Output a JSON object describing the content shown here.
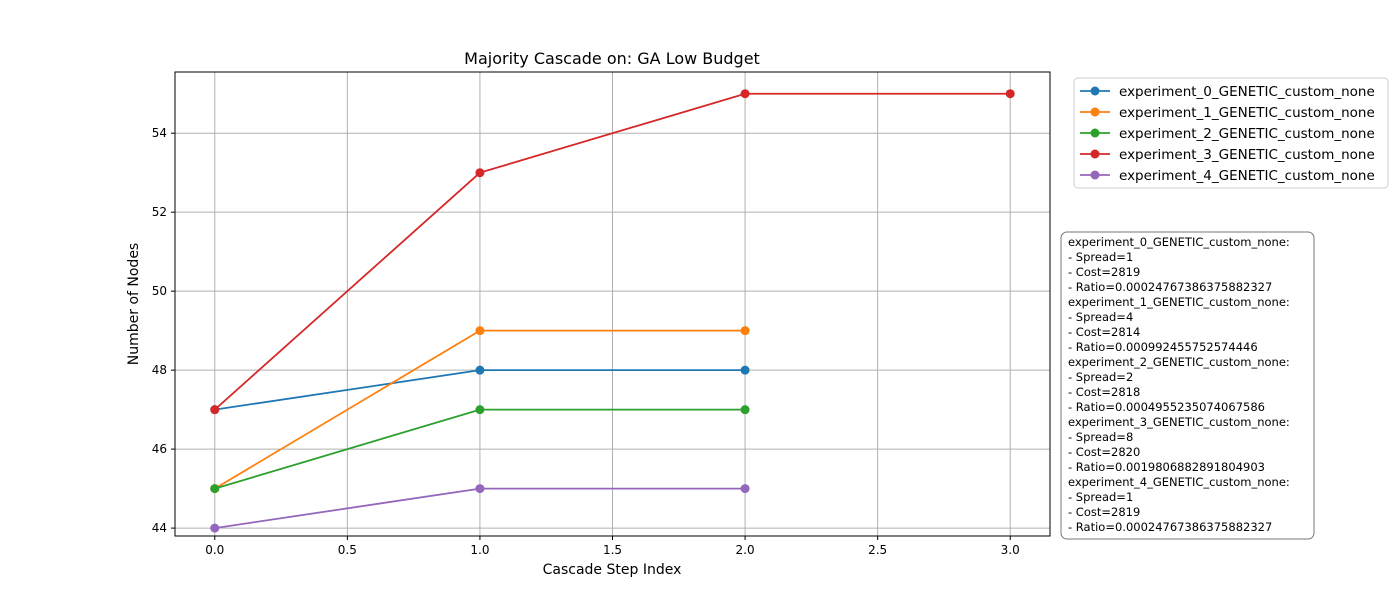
{
  "chart_data": {
    "type": "line",
    "title": "Majority Cascade on: GA Low Budget",
    "xlabel": "Cascade Step Index",
    "ylabel": "Number of Nodes",
    "xlim": [
      -0.15,
      3.15
    ],
    "ylim": [
      43.8,
      55.55
    ],
    "xticks": [
      "0.0",
      "0.5",
      "1.0",
      "1.5",
      "2.0",
      "2.5",
      "3.0"
    ],
    "xtick_values": [
      0,
      0.5,
      1,
      1.5,
      2,
      2.5,
      3
    ],
    "yticks": [
      "44",
      "46",
      "48",
      "50",
      "52",
      "54"
    ],
    "ytick_values": [
      44,
      46,
      48,
      50,
      52,
      54
    ],
    "grid": true,
    "legend_position": "upper-right-outside",
    "series": [
      {
        "name": "experiment_0_GENETIC_custom_none",
        "color": "#1f77b4",
        "x": [
          0,
          1,
          2
        ],
        "y": [
          47,
          48,
          48
        ]
      },
      {
        "name": "experiment_1_GENETIC_custom_none",
        "color": "#ff7f0e",
        "x": [
          0,
          1,
          2
        ],
        "y": [
          45,
          49,
          49
        ]
      },
      {
        "name": "experiment_2_GENETIC_custom_none",
        "color": "#2ca02c",
        "x": [
          0,
          1,
          2
        ],
        "y": [
          45,
          47,
          47
        ]
      },
      {
        "name": "experiment_3_GENETIC_custom_none",
        "color": "#d62728",
        "x": [
          0,
          1,
          2,
          3
        ],
        "y": [
          47,
          53,
          55,
          55
        ]
      },
      {
        "name": "experiment_4_GENETIC_custom_none",
        "color": "#9467bd",
        "x": [
          0,
          1,
          2
        ],
        "y": [
          44,
          45,
          45
        ]
      }
    ],
    "annotation_lines": [
      "experiment_0_GENETIC_custom_none:",
      "- Spread=1",
      "- Cost=2819",
      "- Ratio=0.00024767386375882327",
      "experiment_1_GENETIC_custom_none:",
      "- Spread=4",
      "- Cost=2814",
      "- Ratio=0.000992455752574446",
      "experiment_2_GENETIC_custom_none:",
      "- Spread=2",
      "- Cost=2818",
      "- Ratio=0.0004955235074067586",
      "experiment_3_GENETIC_custom_none:",
      "- Spread=8",
      "- Cost=2820",
      "- Ratio=0.0019806882891804903",
      "experiment_4_GENETIC_custom_none:",
      "- Spread=1",
      "- Cost=2819",
      "- Ratio=0.00024767386375882327"
    ]
  }
}
